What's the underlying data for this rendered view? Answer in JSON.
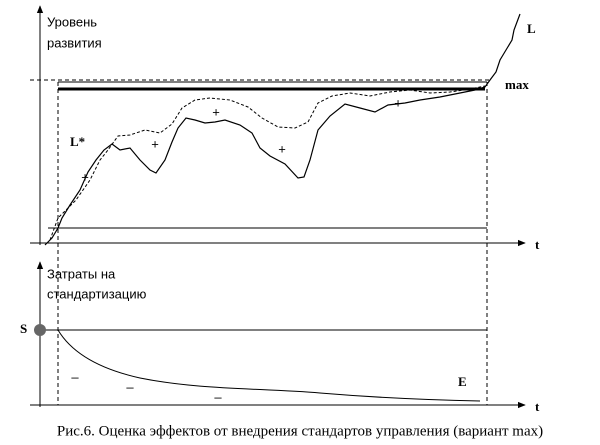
{
  "top_chart": {
    "y_label": [
      "Уровень",
      "развития"
    ],
    "x_label": "t",
    "curve_label": "L",
    "target_label": "max",
    "dashed_label": "L*",
    "plus_signs": [
      "+",
      "+",
      "+",
      "+",
      "+"
    ]
  },
  "bottom_chart": {
    "y_label": [
      "Затраты на",
      "стандартизацию"
    ],
    "x_label": "t",
    "start_label": "S",
    "end_label": "E",
    "minus_signs": [
      "–",
      "–",
      "–"
    ]
  },
  "caption": "Рис.6. Оценка эффектов от внедрения стандартов управления (вариант max)"
}
